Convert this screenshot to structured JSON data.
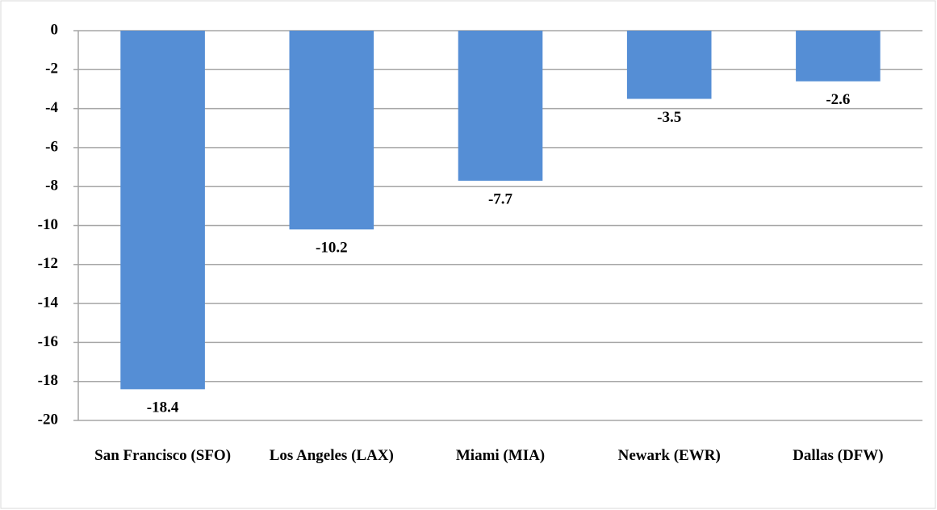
{
  "chart_data": {
    "type": "bar",
    "categories": [
      "San Francisco (SFO)",
      "Los Angeles (LAX)",
      "Miami (MIA)",
      "Newark (EWR)",
      "Dallas (DFW)"
    ],
    "values": [
      -18.4,
      -10.2,
      -7.7,
      -3.5,
      -2.6
    ],
    "color": "#558ed5",
    "ylim": [
      -20,
      0
    ],
    "yticks": [
      0,
      -2,
      -4,
      -6,
      -8,
      -10,
      -12,
      -14,
      -16,
      -18,
      -20
    ],
    "grid": true
  }
}
